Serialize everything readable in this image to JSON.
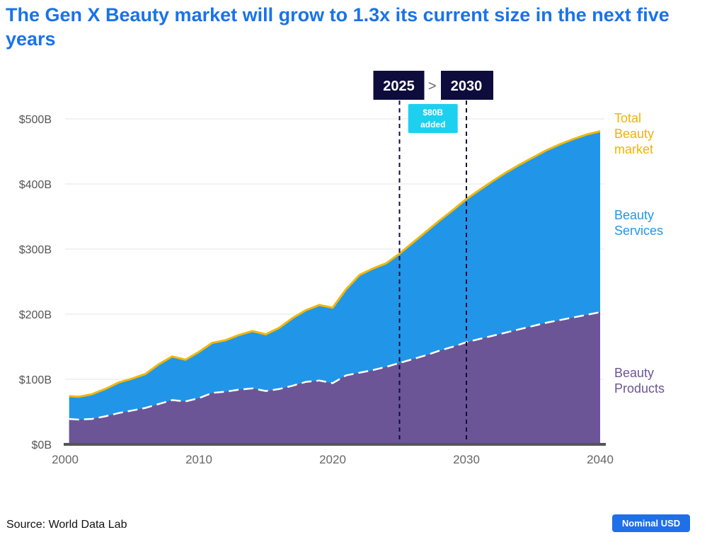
{
  "title": "The Gen X Beauty market will grow to 1.3x its current size in the next five years",
  "source": "Source: World Data Lab",
  "badge": "Nominal USD",
  "colors": {
    "title": "#1a73e8",
    "services": "#2196e8",
    "products": "#6b5596",
    "total_line": "#f2b705",
    "total_label": "#f0b400",
    "services_label": "#2196e8",
    "products_label": "#6b5596",
    "period_box": "#0d0c3d",
    "added_box": "#1ed0f0",
    "badge": "#1f6fe8"
  },
  "chart_data": {
    "type": "area",
    "title": "The Gen X Beauty market will grow to 1.3x its current size in the next five years",
    "x_ticks": [
      "2000",
      "2010",
      "2020",
      "2030",
      "2040"
    ],
    "y_ticks": [
      "$0B",
      "$100B",
      "$200B",
      "$300B",
      "$400B",
      "$500B"
    ],
    "xlim": [
      2000,
      2040
    ],
    "ylim": [
      0,
      500
    ],
    "x": [
      2000.3,
      2001,
      2002,
      2003,
      2004,
      2005,
      2006,
      2007,
      2008,
      2009,
      2010,
      2011,
      2012,
      2013,
      2014,
      2015,
      2016,
      2017,
      2018,
      2019,
      2020,
      2021,
      2022,
      2023,
      2024,
      2025,
      2026,
      2027,
      2028,
      2029,
      2030,
      2031,
      2032,
      2033,
      2034,
      2035,
      2036,
      2037,
      2038,
      2039,
      2040
    ],
    "series": [
      {
        "name": "Beauty Products",
        "label": [
          "Beauty",
          "Products"
        ],
        "values": [
          39,
          38,
          39,
          43,
          48,
          52,
          56,
          62,
          68,
          66,
          71,
          79,
          81,
          84,
          86,
          82,
          85,
          90,
          96,
          98,
          94,
          106,
          110,
          114,
          119,
          125,
          131,
          137,
          144,
          150,
          157,
          162,
          167,
          172,
          177,
          182,
          187,
          191,
          195,
          199,
          203
        ]
      },
      {
        "name": "Total Beauty market",
        "label": [
          "Total",
          "Beauty",
          "market"
        ],
        "values": [
          74,
          73,
          77,
          85,
          95,
          101,
          108,
          123,
          135,
          130,
          142,
          156,
          160,
          168,
          174,
          169,
          179,
          194,
          206,
          214,
          210,
          238,
          260,
          270,
          278,
          293,
          310,
          327,
          344,
          360,
          377,
          391,
          405,
          418,
          430,
          441,
          452,
          461,
          469,
          476,
          481
        ]
      }
    ],
    "services_label": [
      "Beauty",
      "Services"
    ],
    "markers": {
      "start": "2025",
      "end": "2030",
      "arrow": ">",
      "added_value": "$80B",
      "added_text": "added"
    }
  }
}
